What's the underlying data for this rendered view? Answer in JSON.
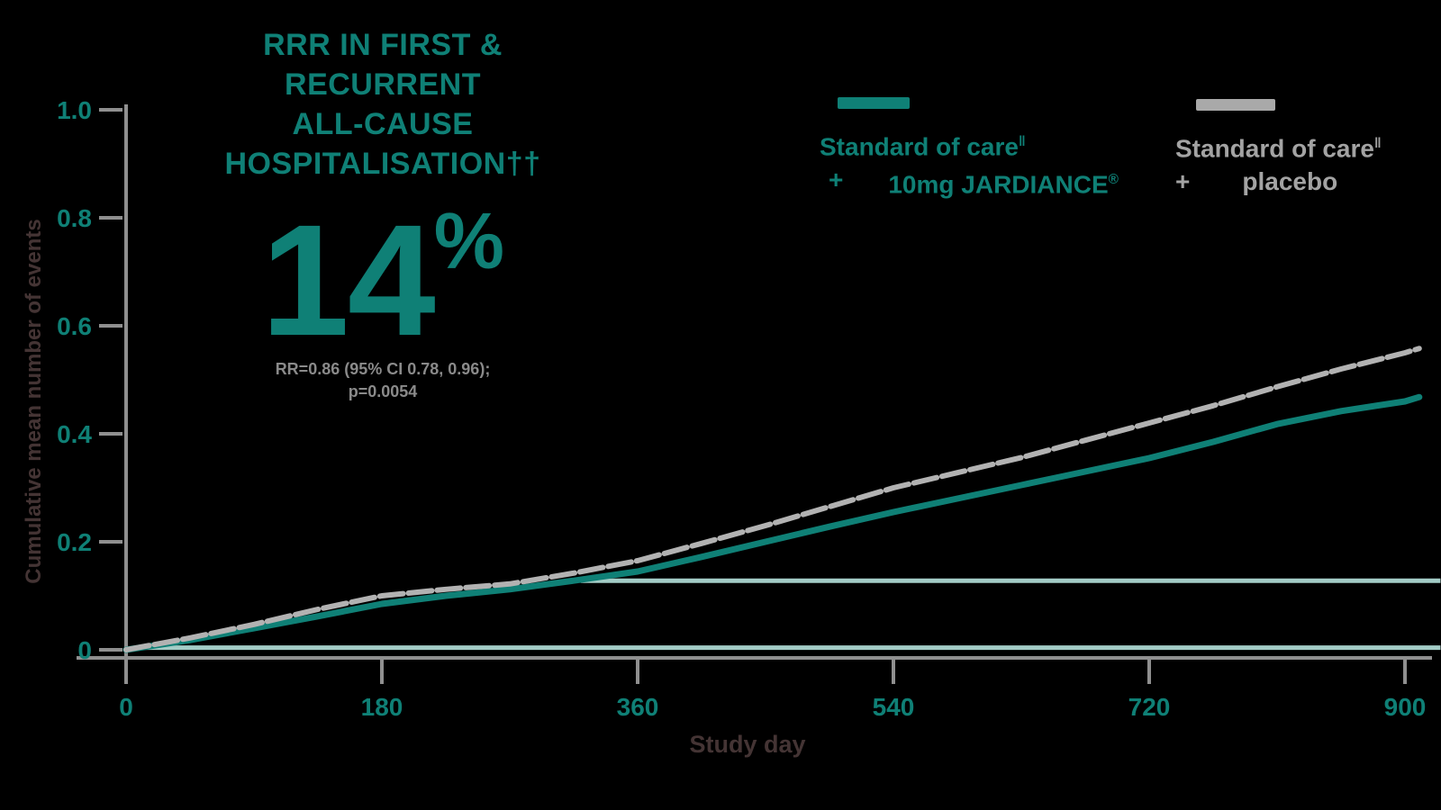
{
  "colors": {
    "background": "#000000",
    "teal": "#0f8076",
    "pale_teal": "#a3ccc6",
    "curve_gray": "#b2b2b2",
    "legend_gray": "#a3a3a3",
    "axis_gray": "#8f8f8f",
    "stat_gray": "#8a8a8a",
    "axis_title_dark": "#443434"
  },
  "headline": {
    "line1": "RRR IN FIRST &",
    "line2": "RECURRENT",
    "line3": "ALL-CAUSE",
    "line4": "HOSPITALISATION††",
    "value": "14",
    "percent_sign": "%",
    "stat_line1": "RR=0.86 (95% CI 0.78, 0.96);",
    "stat_line2": "p=0.0054"
  },
  "legend_jardiance": {
    "line1": "Standard of care",
    "sup1": "‖",
    "plus": "+",
    "line2": "10mg JARDIANCE",
    "sup2": "®"
  },
  "legend_placebo": {
    "line1": "Standard of care",
    "sup1": "‖",
    "plus": "+",
    "line2": "placebo"
  },
  "axes": {
    "x_title": "Study day",
    "y_title": "Cumulative mean number of events"
  },
  "chart_data": {
    "type": "line",
    "title": "RRR in first & recurrent all-cause hospitalisation†† : 14%",
    "xlabel": "Study day",
    "ylabel": "Cumulative mean number of events",
    "xlim": [
      0,
      900
    ],
    "ylim": [
      0,
      1.0
    ],
    "x_ticks": [
      0,
      180,
      360,
      540,
      720,
      900
    ],
    "y_ticks": [
      0,
      0.2,
      0.4,
      0.6,
      0.8,
      1.0
    ],
    "grid": false,
    "legend_position": "top-right",
    "x_days": [
      0,
      45,
      90,
      135,
      180,
      225,
      270,
      315,
      360,
      405,
      450,
      495,
      540,
      585,
      630,
      675,
      720,
      765,
      810,
      855,
      900,
      910
    ],
    "series": [
      {
        "name": "Standard of care + 10mg JARDIANCE",
        "color_key": "teal",
        "values": [
          0,
          0.018,
          0.04,
          0.062,
          0.085,
          0.1,
          0.112,
          0.128,
          0.145,
          0.172,
          0.2,
          0.228,
          0.255,
          0.28,
          0.305,
          0.33,
          0.355,
          0.385,
          0.418,
          0.442,
          0.46,
          0.468
        ]
      },
      {
        "name": "Standard of care + placebo",
        "color_key": "curve_gray",
        "values": [
          0,
          0.022,
          0.047,
          0.075,
          0.1,
          0.112,
          0.122,
          0.142,
          0.165,
          0.197,
          0.23,
          0.265,
          0.3,
          0.328,
          0.356,
          0.388,
          0.42,
          0.452,
          0.487,
          0.52,
          0.55,
          0.558
        ]
      }
    ],
    "reference_lines": [
      {
        "y_value": 0.128,
        "x_start_day": 320,
        "x_end_day": 925
      },
      {
        "y_value": 0.004,
        "x_start_day": 6,
        "x_end_day": 925
      }
    ]
  }
}
